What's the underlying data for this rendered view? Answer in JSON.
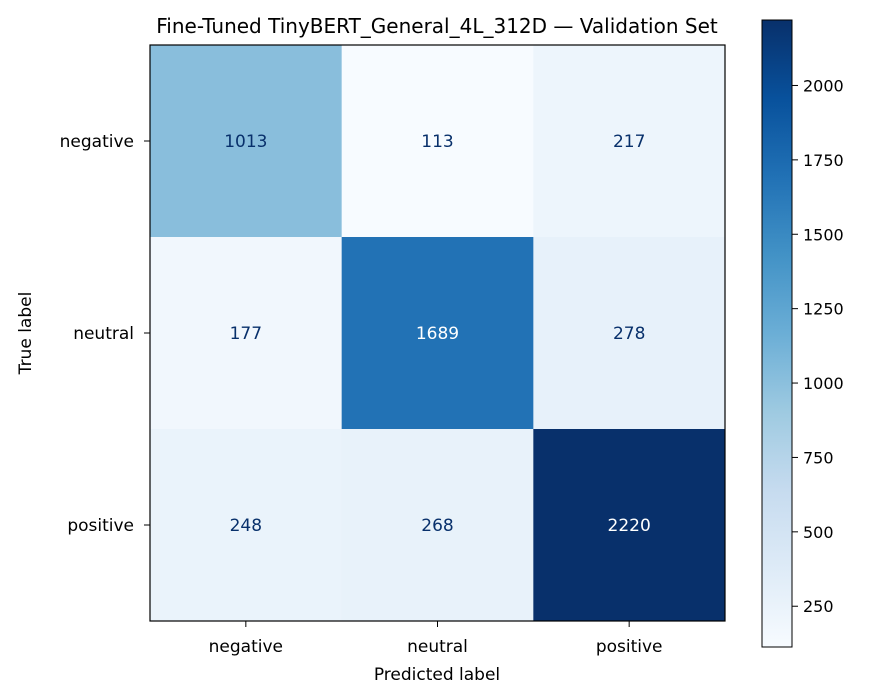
{
  "chart_data": {
    "type": "heatmap",
    "title": "Fine-Tuned TinyBERT_General_4L_312D — Validation Set",
    "xlabel": "Predicted label",
    "ylabel": "True label",
    "x_categories": [
      "negative",
      "neutral",
      "positive"
    ],
    "y_categories": [
      "negative",
      "neutral",
      "positive"
    ],
    "matrix": [
      [
        1013,
        113,
        217
      ],
      [
        177,
        1689,
        278
      ],
      [
        248,
        268,
        2220
      ]
    ],
    "colormap": "Blues",
    "color_range": [
      113,
      2220
    ],
    "colorbar_ticks": [
      250,
      500,
      750,
      1000,
      1250,
      1500,
      1750,
      2000
    ],
    "grid": false
  }
}
